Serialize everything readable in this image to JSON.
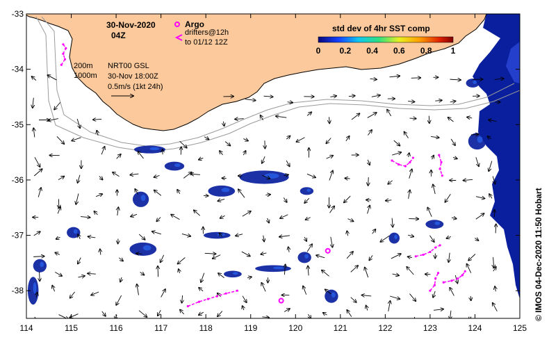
{
  "map": {
    "date": "30-Nov-2020",
    "time": "04Z",
    "argo_label": "Argo",
    "drifters_label_1": "drifters@12h",
    "drifters_label_2": "to 01/12 12Z",
    "isobath_200": "200m",
    "isobath_1000": "1000m",
    "product": "NRT00 GSL",
    "product_time": "30-Nov 18:00Z",
    "scale_label": "0.5m/s (1kt 24h)",
    "colorbar_title": "std dev of 4hr SST comp",
    "colorbar_ticks": [
      "0",
      "0.2",
      "0.4",
      "0.6",
      "0.8",
      "1"
    ],
    "credit": "© IMOS 04-Dec-2020 11:50 Hobart",
    "lon_ticks": [
      "114",
      "115",
      "116",
      "117",
      "118",
      "119",
      "120",
      "121",
      "122",
      "123",
      "124",
      "125"
    ],
    "lat_ticks": [
      "-33",
      "-34",
      "-35",
      "-36",
      "-37",
      "-38"
    ],
    "lon_range": [
      114,
      125
    ],
    "lat_range": [
      -38.5,
      -33
    ],
    "colors": {
      "land": "#fbc99b",
      "argo": "#ff00ff",
      "drifter": "#ff00ff",
      "sst_dense": "#0a1f9e"
    },
    "argo_floats": [
      {
        "lon": 120.72,
        "lat": -37.28
      },
      {
        "lon": 119.68,
        "lat": -38.18
      }
    ],
    "drifter_tracks": [
      {
        "points": [
          [
            114.82,
            -33.55
          ],
          [
            114.88,
            -33.62
          ],
          [
            114.82,
            -33.72
          ],
          [
            114.86,
            -33.82
          ],
          [
            114.78,
            -33.92
          ]
        ]
      },
      {
        "points": [
          [
            117.6,
            -38.28
          ],
          [
            117.85,
            -38.2
          ],
          [
            118.05,
            -38.15
          ],
          [
            118.25,
            -38.1
          ],
          [
            118.45,
            -38.05
          ],
          [
            118.7,
            -38.0
          ]
        ]
      },
      {
        "points": [
          [
            122.15,
            -35.65
          ],
          [
            122.3,
            -35.72
          ],
          [
            122.45,
            -35.75
          ],
          [
            122.55,
            -35.68
          ],
          [
            122.62,
            -35.6
          ]
        ]
      },
      {
        "points": [
          [
            123.2,
            -35.55
          ],
          [
            123.25,
            -35.68
          ],
          [
            123.22,
            -35.8
          ],
          [
            123.27,
            -35.92
          ]
        ]
      },
      {
        "points": [
          [
            122.68,
            -37.38
          ],
          [
            122.85,
            -37.35
          ],
          [
            123.0,
            -37.3
          ],
          [
            123.12,
            -37.22
          ],
          [
            123.22,
            -37.18
          ]
        ]
      },
      {
        "points": [
          [
            123.0,
            -38.0
          ],
          [
            123.1,
            -37.9
          ],
          [
            123.12,
            -37.78
          ],
          [
            123.18,
            -37.68
          ]
        ]
      },
      {
        "points": [
          [
            123.3,
            -37.85
          ],
          [
            123.48,
            -37.82
          ],
          [
            123.62,
            -37.78
          ],
          [
            123.72,
            -37.72
          ],
          [
            123.78,
            -37.65
          ]
        ]
      }
    ],
    "sst_patches": [
      {
        "lon": 116.75,
        "lat": -35.45,
        "rx": 0.35,
        "ry": 0.07
      },
      {
        "lon": 117.3,
        "lat": -35.75,
        "rx": 0.22,
        "ry": 0.08
      },
      {
        "lon": 116.55,
        "lat": -36.35,
        "rx": 0.18,
        "ry": 0.14
      },
      {
        "lon": 118.35,
        "lat": -36.2,
        "rx": 0.3,
        "ry": 0.1
      },
      {
        "lon": 119.3,
        "lat": -35.95,
        "rx": 0.55,
        "ry": 0.12
      },
      {
        "lon": 120.25,
        "lat": -36.2,
        "rx": 0.15,
        "ry": 0.07
      },
      {
        "lon": 116.6,
        "lat": -37.25,
        "rx": 0.3,
        "ry": 0.12
      },
      {
        "lon": 118.25,
        "lat": -37.0,
        "rx": 0.3,
        "ry": 0.06
      },
      {
        "lon": 120.2,
        "lat": -37.4,
        "rx": 0.15,
        "ry": 0.1
      },
      {
        "lon": 118.6,
        "lat": -37.7,
        "rx": 0.2,
        "ry": 0.06
      },
      {
        "lon": 119.5,
        "lat": -37.6,
        "rx": 0.4,
        "ry": 0.06
      },
      {
        "lon": 120.8,
        "lat": -38.1,
        "rx": 0.15,
        "ry": 0.12
      },
      {
        "lon": 114.3,
        "lat": -37.55,
        "rx": 0.15,
        "ry": 0.12
      },
      {
        "lon": 114.15,
        "lat": -38.0,
        "rx": 0.12,
        "ry": 0.25
      },
      {
        "lon": 115.05,
        "lat": -36.95,
        "rx": 0.15,
        "ry": 0.1
      },
      {
        "lon": 122.2,
        "lat": -37.05,
        "rx": 0.12,
        "ry": 0.1
      },
      {
        "lon": 123.1,
        "lat": -36.8,
        "rx": 0.2,
        "ry": 0.08
      },
      {
        "lon": 124.05,
        "lat": -35.3,
        "rx": 0.2,
        "ry": 0.15
      },
      {
        "lon": 123.95,
        "lat": -34.25,
        "rx": 0.15,
        "ry": 0.08
      }
    ]
  }
}
